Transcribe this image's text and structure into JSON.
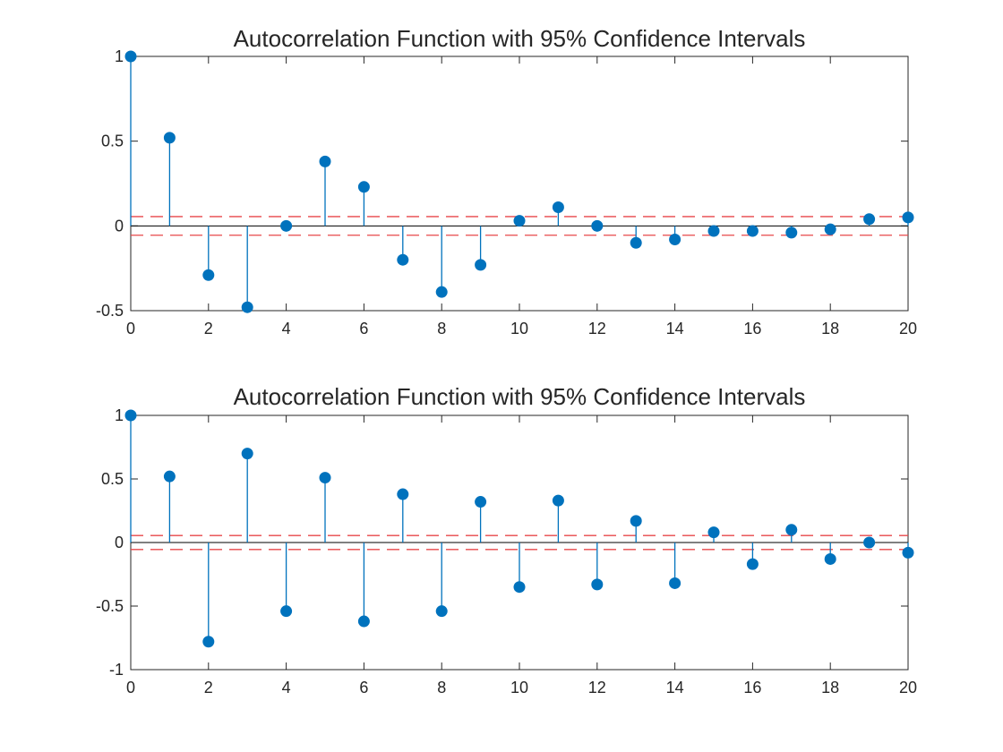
{
  "chart_data": [
    {
      "type": "stem",
      "title": "Autocorrelation Function with 95% Confidence Intervals",
      "xlabel": "",
      "ylabel": "",
      "xlim": [
        0,
        20
      ],
      "ylim": [
        -0.5,
        1
      ],
      "xticks": [
        0,
        2,
        4,
        6,
        8,
        10,
        12,
        14,
        16,
        18,
        20
      ],
      "yticks": [
        -0.5,
        0,
        0.5,
        1
      ],
      "ytick_labels": [
        "-0.5",
        "0",
        "0.5",
        "1"
      ],
      "lags": [
        0,
        1,
        2,
        3,
        4,
        5,
        6,
        7,
        8,
        9,
        10,
        11,
        12,
        13,
        14,
        15,
        16,
        17,
        18,
        19,
        20
      ],
      "values": [
        1,
        0.52,
        -0.29,
        -0.48,
        0,
        0.38,
        0.23,
        -0.2,
        -0.39,
        -0.23,
        0.03,
        0.11,
        0,
        -0.1,
        -0.08,
        -0.03,
        -0.03,
        -0.04,
        -0.02,
        0.04,
        0.05
      ],
      "confidence_bounds": [
        -0.055,
        0.055
      ],
      "grid": false
    },
    {
      "type": "stem",
      "title": "Autocorrelation Function with 95% Confidence Intervals",
      "xlabel": "",
      "ylabel": "",
      "xlim": [
        0,
        20
      ],
      "ylim": [
        -1,
        1
      ],
      "xticks": [
        0,
        2,
        4,
        6,
        8,
        10,
        12,
        14,
        16,
        18,
        20
      ],
      "yticks": [
        -1,
        -0.5,
        0,
        0.5,
        1
      ],
      "ytick_labels": [
        "-1",
        "-0.5",
        "0",
        "0.5",
        "1"
      ],
      "lags": [
        0,
        1,
        2,
        3,
        4,
        5,
        6,
        7,
        8,
        9,
        10,
        11,
        12,
        13,
        14,
        15,
        16,
        17,
        18,
        19,
        20
      ],
      "values": [
        1,
        0.52,
        -0.78,
        0.7,
        -0.54,
        0.51,
        -0.62,
        0.38,
        -0.54,
        0.32,
        -0.35,
        0.33,
        -0.33,
        0.17,
        -0.32,
        0.08,
        -0.17,
        0.1,
        -0.13,
        0,
        -0.08
      ],
      "confidence_bounds": [
        -0.055,
        0.055
      ],
      "grid": false
    }
  ],
  "colors": {
    "stem": "#0072BD",
    "confidence": "#E8474A",
    "axis": "#262626",
    "zero_line": "#000000",
    "background": "#ffffff"
  }
}
